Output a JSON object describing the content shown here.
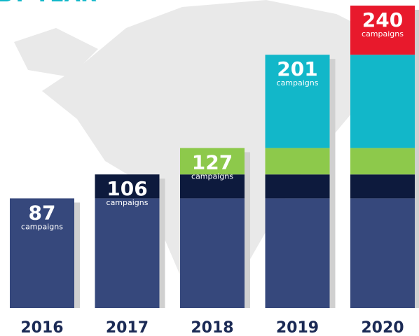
{
  "chart_data": {
    "type": "stacked_bar",
    "title": "BY YEAR",
    "categories": [
      "2016",
      "2017",
      "2018",
      "2019",
      "2020"
    ],
    "series": [
      {
        "color": "#36487c",
        "values": [
          87,
          87,
          87,
          87,
          87
        ]
      },
      {
        "color": "#0d1a3d",
        "values": [
          null,
          19,
          19,
          19,
          19
        ]
      },
      {
        "color": "#8dc94b",
        "values": [
          null,
          null,
          21,
          21,
          21
        ]
      },
      {
        "color": "#12b7c9",
        "values": [
          null,
          null,
          null,
          74,
          74
        ]
      },
      {
        "color": "#e8192c",
        "values": [
          null,
          null,
          null,
          null,
          39
        ]
      }
    ],
    "totals": [
      87,
      106,
      127,
      201,
      240
    ],
    "total_unit": "campaigns",
    "ylim": [
      0,
      240
    ]
  }
}
